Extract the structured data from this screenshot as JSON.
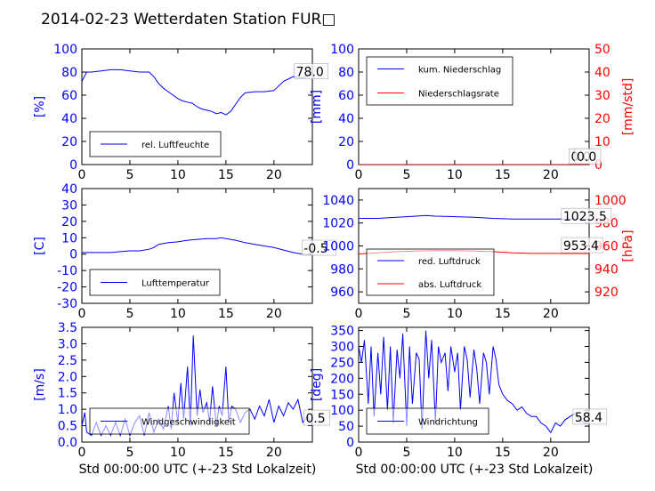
{
  "title": "2014-02-23 Wetterdaten Station FUR□",
  "colors": {
    "primary": "#0000ff",
    "secondary": "#ff0000",
    "frame": "#000000"
  },
  "xlabel": "Std 00:00:00 UTC (+-23 Std Lokalzeit)",
  "chart_data": [
    {
      "id": "humidity",
      "type": "line",
      "title": "",
      "xlabel": "",
      "ylabel": "[%]",
      "xlim": [
        0,
        24
      ],
      "ylim": [
        0,
        100
      ],
      "xticks": [
        0,
        5,
        10,
        15,
        20
      ],
      "yticks": [
        0,
        20,
        40,
        60,
        80,
        100
      ],
      "legend": {
        "placement": "lower-left"
      },
      "series": [
        {
          "name": "rel. Luftfeuchte",
          "color": "#0000ff",
          "x": [
            0,
            0.5,
            1,
            2,
            3,
            4,
            5,
            6,
            7,
            7.5,
            8,
            8.5,
            9,
            9.5,
            10,
            10.5,
            11,
            11.5,
            12,
            12.5,
            13,
            13.5,
            14,
            14.5,
            15,
            15.5,
            16,
            16.5,
            17,
            18,
            19,
            20,
            21,
            22,
            23,
            24
          ],
          "y": [
            72,
            80,
            80,
            81,
            82,
            82,
            81,
            80,
            80,
            76,
            70,
            66,
            63,
            60,
            57,
            55,
            54,
            53,
            50,
            48,
            47,
            46,
            44,
            45,
            43,
            46,
            52,
            58,
            62,
            63,
            63,
            64,
            72,
            76,
            75,
            78
          ]
        }
      ],
      "annotations": [
        {
          "text": "78.0",
          "x": 22.3,
          "y": 78
        }
      ]
    },
    {
      "id": "precipitation",
      "type": "line",
      "title": "",
      "xlabel": "",
      "ylabel": "[mm]",
      "ylabel2": "[mm/std]",
      "xlim": [
        0,
        24
      ],
      "ylim": [
        0,
        100
      ],
      "ylim2": [
        0,
        50
      ],
      "xticks": [
        0,
        5,
        10,
        15,
        20
      ],
      "yticks": [
        0,
        20,
        40,
        60,
        80,
        100
      ],
      "yticks2": [
        0,
        10,
        20,
        30,
        40,
        50
      ],
      "legend": {
        "placement": "upper-left"
      },
      "series": [
        {
          "name": "kum. Niederschlag",
          "color": "#0000ff",
          "axis": "left",
          "x": [
            0,
            24
          ],
          "y": [
            0,
            0
          ]
        },
        {
          "name": "Niederschlagsrate",
          "color": "#ff0000",
          "axis": "right",
          "x": [
            0,
            24
          ],
          "y": [
            0,
            0
          ]
        }
      ],
      "annotations": [
        {
          "text": "0.0",
          "x": 22.1,
          "y": 4.5
        },
        {
          "text": "0.0",
          "x": 22.7,
          "y": 4.5
        }
      ]
    },
    {
      "id": "temperature",
      "type": "line",
      "title": "",
      "xlabel": "",
      "ylabel": "[C]",
      "xlim": [
        0,
        24
      ],
      "ylim": [
        -30,
        40
      ],
      "xticks": [
        0,
        5,
        10,
        15,
        20
      ],
      "yticks": [
        -30,
        -20,
        -10,
        0,
        10,
        20,
        30,
        40
      ],
      "legend": {
        "placement": "lower-left"
      },
      "series": [
        {
          "name": "Lufttemperatur",
          "color": "#0000ff",
          "x": [
            0,
            1,
            2,
            3,
            4,
            5,
            6,
            7,
            7.5,
            8,
            8.5,
            9,
            10,
            11,
            12,
            13,
            14,
            14.5,
            15,
            16,
            17,
            18,
            19,
            20,
            21,
            22,
            23,
            24
          ],
          "y": [
            1,
            1,
            1,
            1,
            1.5,
            2,
            2,
            3,
            4,
            6,
            6.5,
            7,
            7.5,
            8.5,
            9,
            9.5,
            9.5,
            10,
            9.5,
            8.5,
            7,
            6,
            5,
            4,
            2.5,
            1,
            0,
            -0.5
          ]
        }
      ],
      "annotations": [
        {
          "text": "-0.5",
          "x": 23.1,
          "y": 2
        }
      ]
    },
    {
      "id": "pressure",
      "type": "line",
      "title": "",
      "xlabel": "",
      "ylabel": "",
      "ylabel2": "[hPa]",
      "xlim": [
        0,
        24
      ],
      "ylim": [
        950,
        1050
      ],
      "ylim2": [
        910,
        1010
      ],
      "xticks": [
        0,
        5,
        10,
        15,
        20
      ],
      "yticks": [
        960,
        980,
        1000,
        1020,
        1040
      ],
      "yticks2": [
        920,
        940,
        960,
        980,
        1000
      ],
      "legend": {
        "placement": "lower-left"
      },
      "series": [
        {
          "name": "red. Luftdruck",
          "color": "#0000ff",
          "axis": "left",
          "x": [
            0,
            2,
            4,
            6,
            7,
            8,
            10,
            12,
            14,
            16,
            18,
            20,
            22,
            24
          ],
          "y": [
            1024,
            1024,
            1025,
            1026,
            1026.5,
            1026,
            1025.5,
            1025,
            1024,
            1023.5,
            1023.5,
            1023.5,
            1023.5,
            1023.5
          ]
        },
        {
          "name": "abs. Luftdruck",
          "color": "#ff0000",
          "axis": "right",
          "x": [
            0,
            2,
            4,
            6,
            8,
            10,
            12,
            14,
            16,
            18,
            20,
            22,
            24
          ],
          "y": [
            953,
            954,
            955,
            955.5,
            956,
            956,
            955.5,
            955,
            954,
            953.5,
            953.5,
            953.4,
            953.4
          ]
        }
      ],
      "annotations": [
        {
          "text": "1023.5",
          "x": 21.3,
          "y": 1023.5
        },
        {
          "text": "953.4",
          "x": 21.3,
          "y": 998
        }
      ]
    },
    {
      "id": "windspeed",
      "type": "line",
      "title": "",
      "xlabel": "Std 00:00:00 UTC (+-23 Std Lokalzeit)",
      "ylabel": "[m/s]",
      "xlim": [
        0,
        24
      ],
      "ylim": [
        0,
        3.5
      ],
      "xticks": [
        0,
        5,
        10,
        15,
        20
      ],
      "yticks": [
        0.0,
        0.5,
        1.0,
        1.5,
        2.0,
        2.5,
        3.0,
        3.5
      ],
      "legend": {
        "placement": "lower-left"
      },
      "series": [
        {
          "name": "Windgeschwindigkeit",
          "color": "#0000ff",
          "x": [
            0,
            0.3,
            0.5,
            1,
            1.5,
            2,
            2.5,
            3,
            3.5,
            4,
            4.5,
            5,
            5.5,
            6,
            6.5,
            7,
            7.5,
            8,
            8.5,
            9,
            9.3,
            9.6,
            10,
            10.3,
            10.6,
            11,
            11.3,
            11.6,
            12,
            12.3,
            12.6,
            13,
            13.3,
            13.6,
            14,
            14.3,
            14.6,
            15,
            15.3,
            15.6,
            16,
            16.5,
            17,
            17.5,
            18,
            18.5,
            19,
            19.5,
            20,
            20.5,
            21,
            21.5,
            22,
            22.5,
            23,
            23.5,
            24
          ],
          "y": [
            0.5,
            0.9,
            0.3,
            0.2,
            0.6,
            0.2,
            0.5,
            0.2,
            0.6,
            0.2,
            0.7,
            0.2,
            0.6,
            0.8,
            0.2,
            0.9,
            0.3,
            0.7,
            0.4,
            1.1,
            0.4,
            1.5,
            0.6,
            1.8,
            0.7,
            2.3,
            0.5,
            3.25,
            0.8,
            1.6,
            0.9,
            1.2,
            0.6,
            1.7,
            0.5,
            1.1,
            0.8,
            2.3,
            0.6,
            1.1,
            1.0,
            0.6,
            0.9,
            1.0,
            0.7,
            1.1,
            0.8,
            1.3,
            0.6,
            1.1,
            0.8,
            1.2,
            1.0,
            1.3,
            0.6,
            0.8,
            0.5
          ]
        }
      ],
      "annotations": [
        {
          "text": "0.5",
          "x": 23.3,
          "y": 0.65
        }
      ]
    },
    {
      "id": "winddirection",
      "type": "line",
      "title": "",
      "xlabel": "Std 00:00:00 UTC (+-23 Std Lokalzeit)",
      "ylabel": "[deg]",
      "xlim": [
        0,
        24
      ],
      "ylim": [
        0,
        360
      ],
      "xticks": [
        0,
        5,
        10,
        15,
        20
      ],
      "yticks": [
        0,
        50,
        100,
        150,
        200,
        250,
        300,
        350
      ],
      "legend": {
        "placement": "lower-left"
      },
      "series": [
        {
          "name": "Windrichtung",
          "color": "#0000ff",
          "x": [
            0,
            0.3,
            0.6,
            1,
            1.3,
            1.6,
            2,
            2.3,
            2.6,
            3,
            3.3,
            3.6,
            4,
            4.3,
            4.6,
            5,
            5.3,
            5.6,
            6,
            6.3,
            6.6,
            7,
            7.3,
            7.6,
            8,
            8.3,
            8.6,
            9,
            9.3,
            9.6,
            10,
            10.3,
            10.6,
            11,
            11.3,
            11.6,
            12,
            12.3,
            12.6,
            13,
            13.3,
            13.6,
            14,
            14.3,
            14.6,
            15,
            15.5,
            16,
            16.5,
            17,
            17.5,
            18,
            18.5,
            19,
            19.5,
            20,
            20.5,
            21,
            21.5,
            22,
            22.5,
            23,
            23.5,
            24
          ],
          "y": [
            300,
            250,
            320,
            120,
            300,
            80,
            280,
            150,
            330,
            100,
            300,
            60,
            290,
            200,
            340,
            50,
            300,
            120,
            280,
            260,
            40,
            350,
            200,
            320,
            60,
            300,
            250,
            280,
            160,
            300,
            220,
            280,
            100,
            300,
            260,
            140,
            290,
            230,
            120,
            280,
            250,
            150,
            300,
            260,
            180,
            150,
            130,
            120,
            100,
            110,
            90,
            80,
            80,
            60,
            50,
            30,
            60,
            50,
            70,
            80,
            90,
            70,
            60,
            58
          ]
        }
      ],
      "annotations": [
        {
          "text": "58.4",
          "x": 22.5,
          "y": 70
        }
      ]
    }
  ]
}
